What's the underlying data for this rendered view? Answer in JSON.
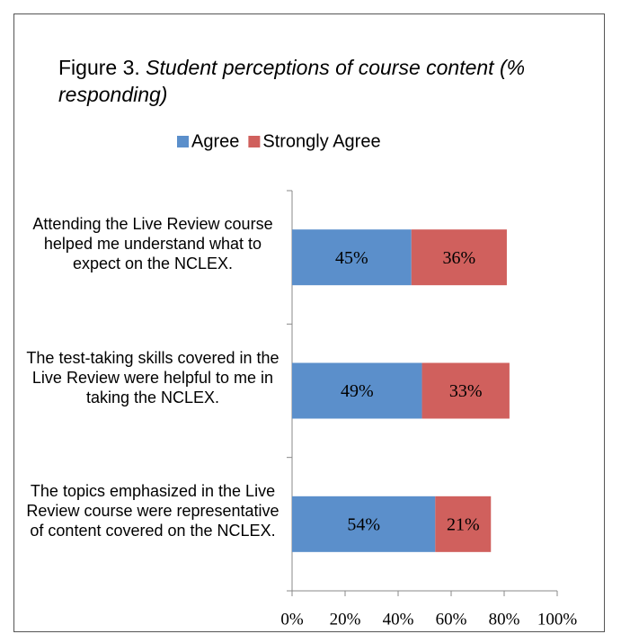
{
  "chart_data": {
    "type": "stacked-barh",
    "title": "Figure 3.",
    "subtitle": "Student perceptions of course content (% responding)",
    "categories": [
      "Attending the Live Review course helped me understand what to expect on the NCLEX.",
      "The test-taking skills covered in the Live Review were helpful to me in taking the NCLEX.",
      "The topics emphasized in the Live Review course were representative of content covered on the NCLEX."
    ],
    "series": [
      {
        "name": "Agree",
        "color": "#5b8fcb",
        "values": [
          45,
          49,
          54
        ],
        "value_labels": [
          "45%",
          "49%",
          "54%"
        ]
      },
      {
        "name": "Strongly Agree",
        "color": "#d0605d",
        "values": [
          36,
          33,
          21
        ],
        "value_labels": [
          "36%",
          "33%",
          "21%"
        ]
      }
    ],
    "xlim": [
      0,
      100
    ],
    "xticks": [
      {
        "value": 0,
        "label": "0%"
      },
      {
        "value": 20,
        "label": "20%"
      },
      {
        "value": 40,
        "label": "40%"
      },
      {
        "value": 60,
        "label": "60%"
      },
      {
        "value": 80,
        "label": "80%"
      },
      {
        "value": 100,
        "label": "100%"
      }
    ],
    "legend": "top"
  }
}
